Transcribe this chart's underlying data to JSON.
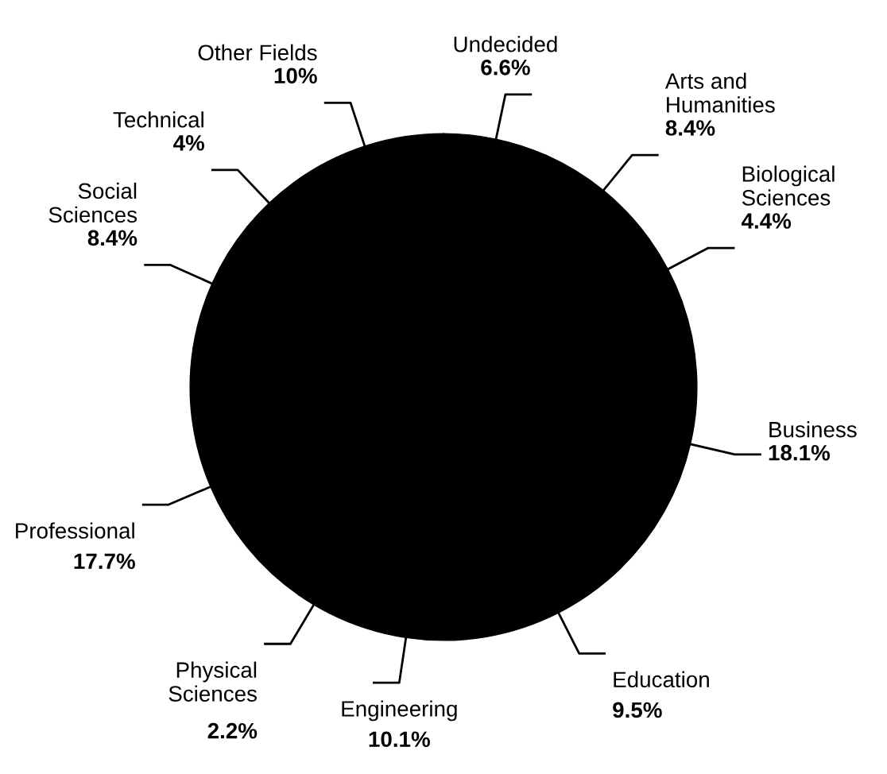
{
  "chart_data": {
    "type": "pie",
    "categories": [
      "Undecided",
      "Arts and\nHumanities",
      "Biological\nSciences",
      "Business",
      "Education",
      "Engineering",
      "Physical\nSciences",
      "Professional",
      "Social\nSciences",
      "Technical",
      "Other Fields"
    ],
    "values": [
      6.6,
      8.4,
      4.4,
      18.1,
      9.5,
      10.1,
      2.2,
      17.7,
      8.4,
      4,
      10
    ],
    "value_labels": [
      "6.6%",
      "8.4%",
      "4.4%",
      "18.1%",
      "9.5%",
      "10.1%",
      "2.2%",
      "17.7%",
      "8.4%",
      "4%",
      "10%"
    ],
    "colors": [
      "#000000",
      "#000000",
      "#000000",
      "#000000",
      "#000000",
      "#000000",
      "#000000",
      "#000000",
      "#000000",
      "#000000",
      "#000000"
    ]
  }
}
